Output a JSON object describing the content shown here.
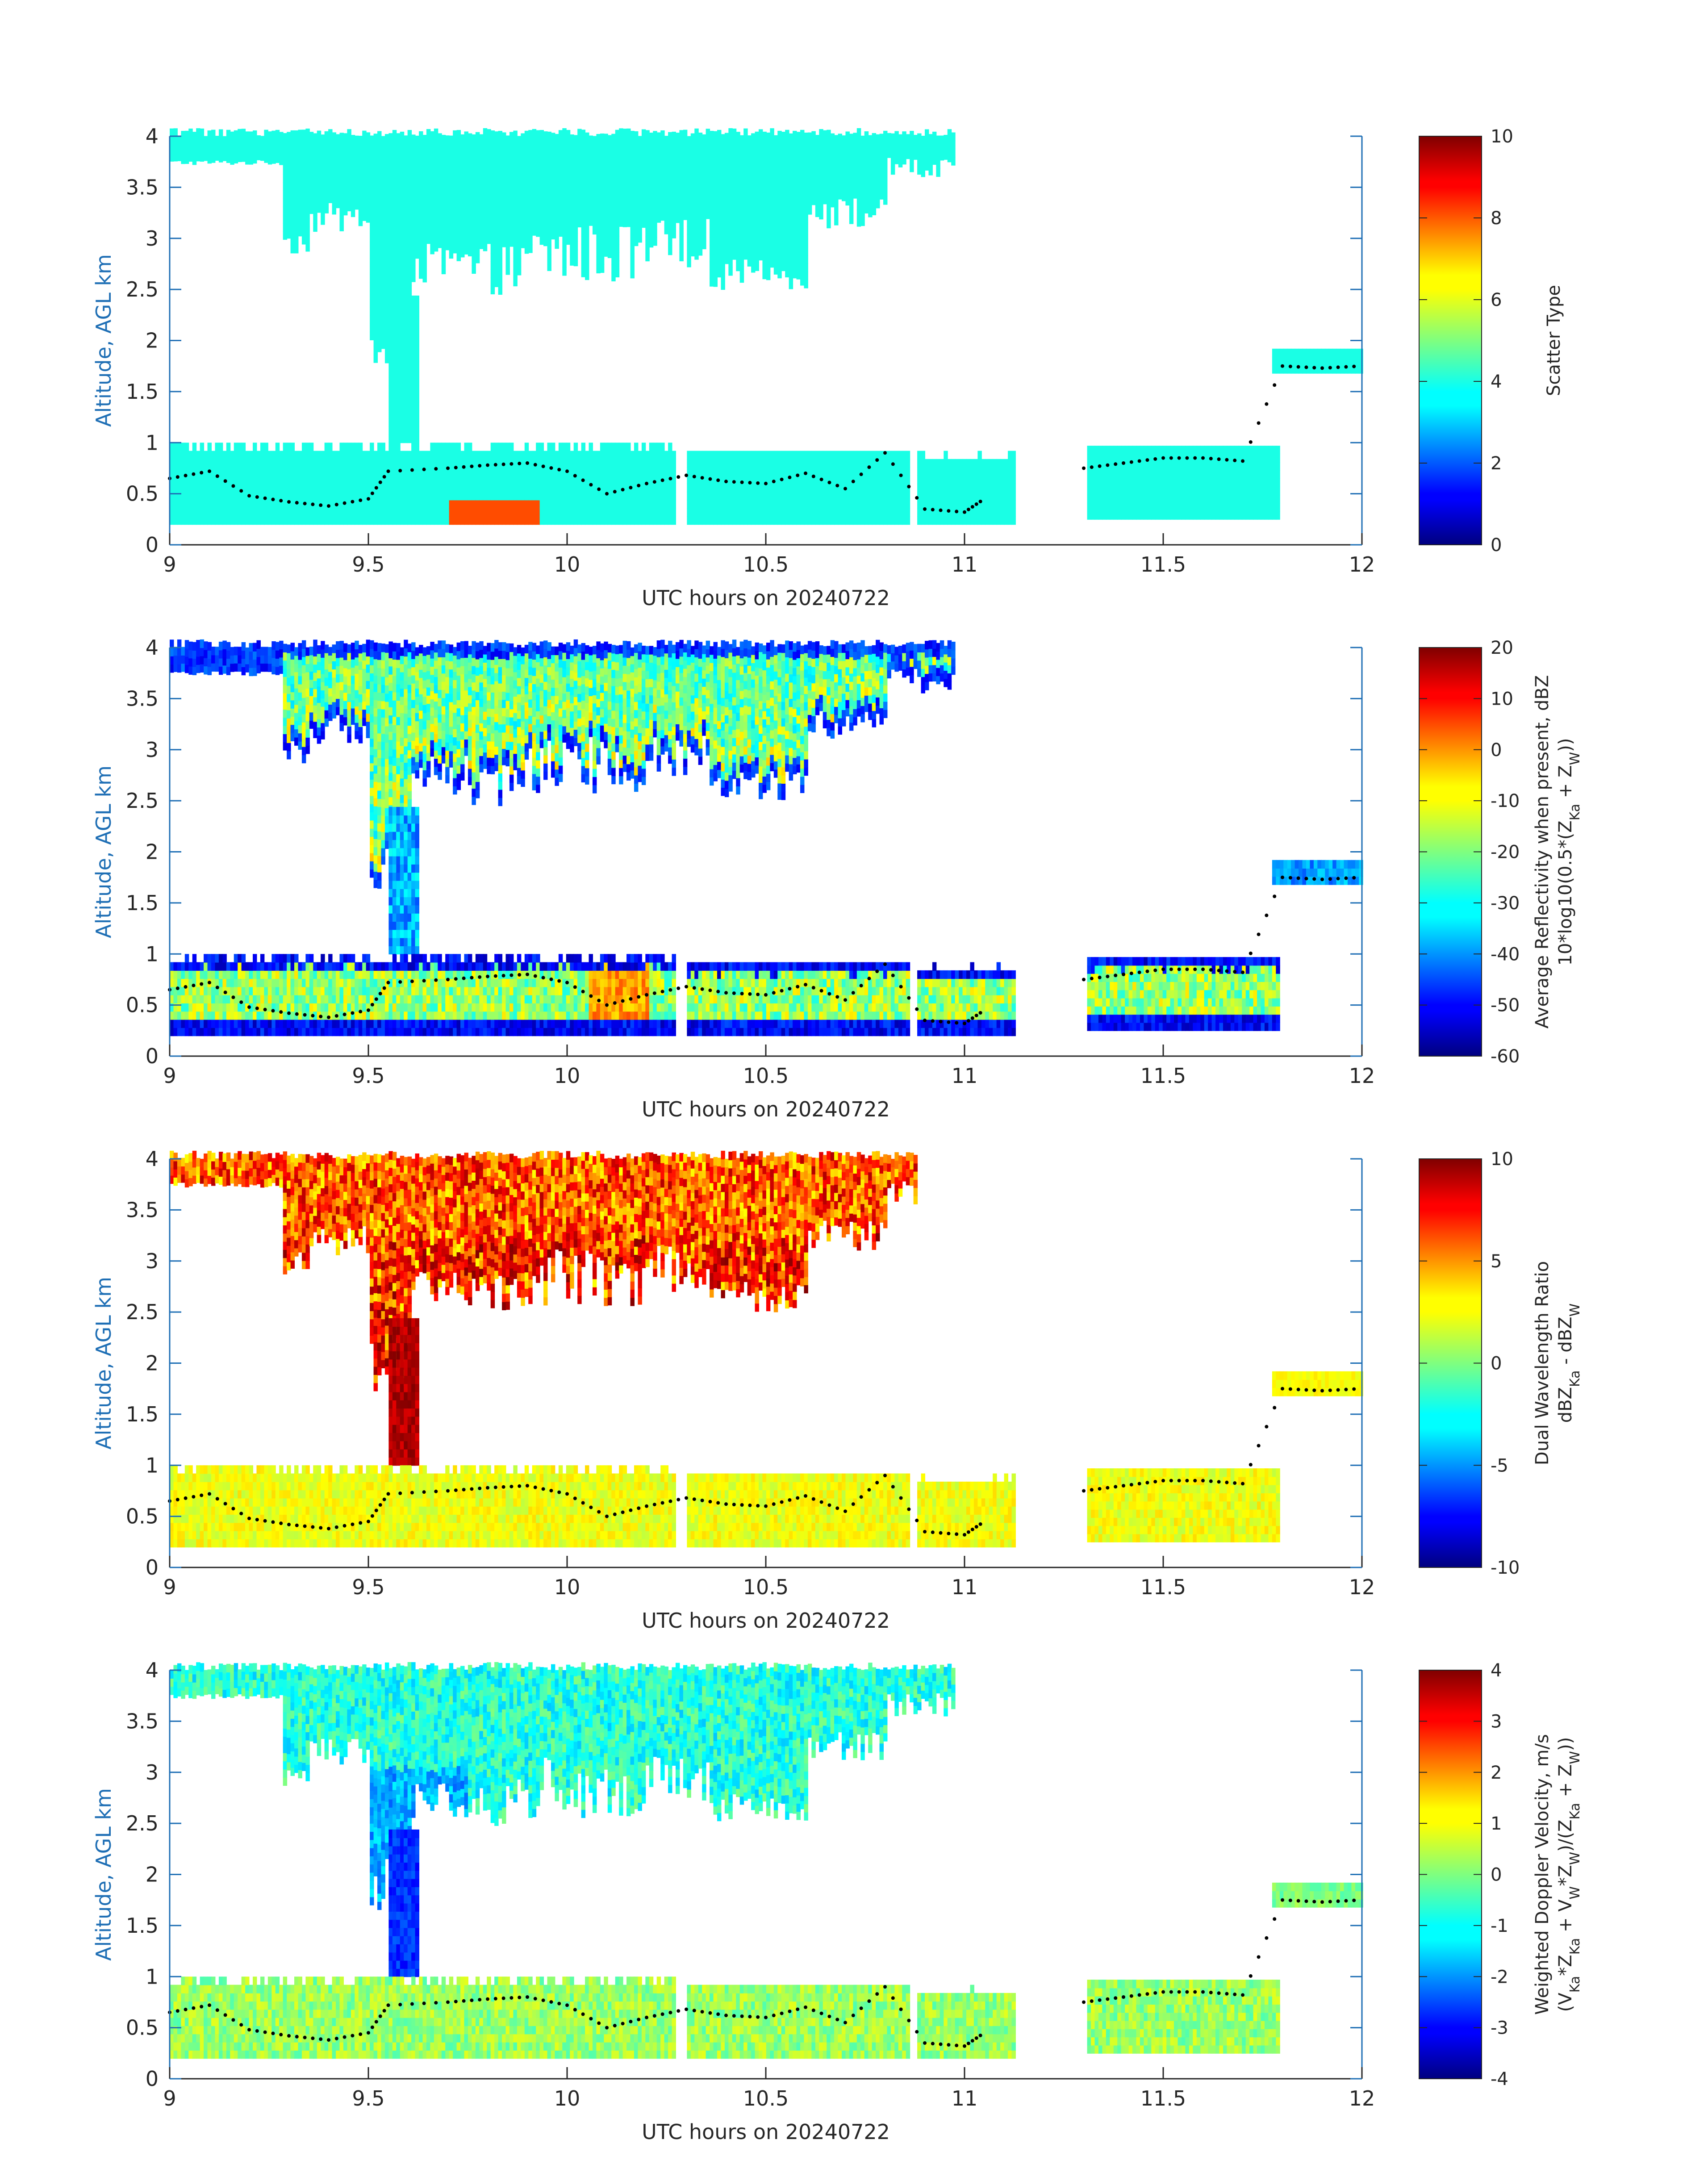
{
  "chart_data": [
    {
      "type": "heatmap",
      "xlabel": "UTC hours on 20240722",
      "ylabel": "Altitude, AGL km",
      "xlim": [
        9,
        12
      ],
      "ylim": [
        0,
        4
      ],
      "xticks": [
        "9",
        "9.5",
        "10",
        "10.5",
        "11",
        "11.5",
        "12"
      ],
      "yticks": [
        "0",
        "0.5",
        "1",
        "1.5",
        "2",
        "2.5",
        "3",
        "3.5",
        "4"
      ],
      "colorbar": {
        "label_lines": [
          "Scatter Type"
        ],
        "range": [
          0,
          10
        ],
        "ticks": [
          "0",
          "2",
          "4",
          "6",
          "8",
          "10"
        ],
        "colormap": "jet"
      },
      "field": "scatter_type",
      "dominant_values": {
        "cloud": 4,
        "drizzle": 8
      },
      "regions": [
        {
          "x": [
            9.0,
            10.97
          ],
          "y": [
            2.5,
            4.0
          ],
          "value": 4
        },
        {
          "x": [
            9.3,
            10.3
          ],
          "y": [
            2.6,
            4.0
          ],
          "value": 4
        },
        {
          "x": [
            9.0,
            10.25
          ],
          "y": [
            0.2,
            0.95
          ],
          "value": 4
        },
        {
          "x": [
            10.3,
            10.85
          ],
          "y": [
            0.2,
            0.9
          ],
          "value": 4
        },
        {
          "x": [
            10.85,
            11.1
          ],
          "y": [
            0.2,
            0.85
          ],
          "value": 4
        },
        {
          "x": [
            11.3,
            11.78
          ],
          "y": [
            0.25,
            0.95
          ],
          "value": 4
        },
        {
          "x": [
            11.77,
            12.0
          ],
          "y": [
            1.68,
            1.88
          ],
          "value": 4
        },
        {
          "x": [
            9.7,
            9.93
          ],
          "y": [
            0.2,
            0.4
          ],
          "value": 8
        }
      ],
      "cloud_base_trace": [
        [
          9.0,
          0.65
        ],
        [
          9.1,
          0.72
        ],
        [
          9.2,
          0.48
        ],
        [
          9.3,
          0.42
        ],
        [
          9.4,
          0.38
        ],
        [
          9.5,
          0.45
        ],
        [
          9.55,
          0.72
        ],
        [
          9.7,
          0.75
        ],
        [
          9.8,
          0.78
        ],
        [
          9.9,
          0.8
        ],
        [
          10.0,
          0.72
        ],
        [
          10.1,
          0.5
        ],
        [
          10.2,
          0.6
        ],
        [
          10.3,
          0.68
        ],
        [
          10.4,
          0.62
        ],
        [
          10.5,
          0.6
        ],
        [
          10.6,
          0.7
        ],
        [
          10.7,
          0.55
        ],
        [
          10.8,
          0.9
        ],
        [
          10.9,
          0.35
        ],
        [
          11.0,
          0.32
        ],
        [
          11.05,
          0.45
        ],
        [
          11.3,
          0.75
        ],
        [
          11.4,
          0.8
        ],
        [
          11.5,
          0.85
        ],
        [
          11.6,
          0.85
        ],
        [
          11.7,
          0.82
        ],
        [
          11.8,
          1.75
        ],
        [
          11.9,
          1.73
        ],
        [
          12.0,
          1.75
        ]
      ]
    },
    {
      "type": "heatmap",
      "xlabel": "UTC hours on 20240722",
      "ylabel": "Altitude, AGL km",
      "xlim": [
        9,
        12
      ],
      "ylim": [
        0,
        4
      ],
      "xticks": [
        "9",
        "9.5",
        "10",
        "10.5",
        "11",
        "11.5",
        "12"
      ],
      "yticks": [
        "0",
        "0.5",
        "1",
        "1.5",
        "2",
        "2.5",
        "3",
        "3.5",
        "4"
      ],
      "colorbar": {
        "label_lines": [
          "Average Reflectivity when present, dBZ",
          "10*log10(0.5*(Z",
          "Ka",
          " + Z",
          "W",
          "))"
        ],
        "range": [
          -60,
          20
        ],
        "ticks": [
          "-60",
          "-50",
          "-40",
          "-30",
          "-20",
          "-10",
          "0",
          "10",
          "20"
        ],
        "colormap": "jet"
      },
      "field": "reflectivity_dbz"
    },
    {
      "type": "heatmap",
      "xlabel": "UTC hours on 20240722",
      "ylabel": "Altitude, AGL km",
      "xlim": [
        9,
        12
      ],
      "ylim": [
        0,
        4
      ],
      "xticks": [
        "9",
        "9.5",
        "10",
        "10.5",
        "11",
        "11.5",
        "12"
      ],
      "yticks": [
        "0",
        "0.5",
        "1",
        "1.5",
        "2",
        "2.5",
        "3",
        "3.5",
        "4"
      ],
      "colorbar": {
        "label_lines": [
          "Dual Wavelength Ratio",
          "dBZ",
          "Ka",
          " - dBZ",
          "W"
        ],
        "range": [
          -10,
          10
        ],
        "ticks": [
          "-10",
          "-5",
          "0",
          "5",
          "10"
        ],
        "colormap": "jet"
      },
      "field": "dual_wavelength_ratio"
    },
    {
      "type": "heatmap",
      "xlabel": "UTC hours on 20240722",
      "ylabel": "Altitude, AGL km",
      "xlim": [
        9,
        12
      ],
      "ylim": [
        0,
        4
      ],
      "xticks": [
        "9",
        "9.5",
        "10",
        "10.5",
        "11",
        "11.5",
        "12"
      ],
      "yticks": [
        "0",
        "0.5",
        "1",
        "1.5",
        "2",
        "2.5",
        "3",
        "3.5",
        "4"
      ],
      "colorbar": {
        "label_lines": [
          "Weighted Doppler Velocity, m/s",
          "(V",
          "Ka",
          "*Z",
          "Ka",
          " + V",
          "W",
          "*Z",
          "W",
          ")/(Z",
          "Ka",
          " + Z",
          "W",
          "))"
        ],
        "range": [
          -4,
          4
        ],
        "ticks": [
          "-4",
          "-3",
          "-2",
          "-1",
          "0",
          "1",
          "2",
          "3",
          "4"
        ],
        "colormap": "jet"
      },
      "field": "doppler_velocity"
    }
  ],
  "colors": {
    "axis": "#1f6fb5",
    "text": "#262626",
    "trace": "#000000"
  }
}
